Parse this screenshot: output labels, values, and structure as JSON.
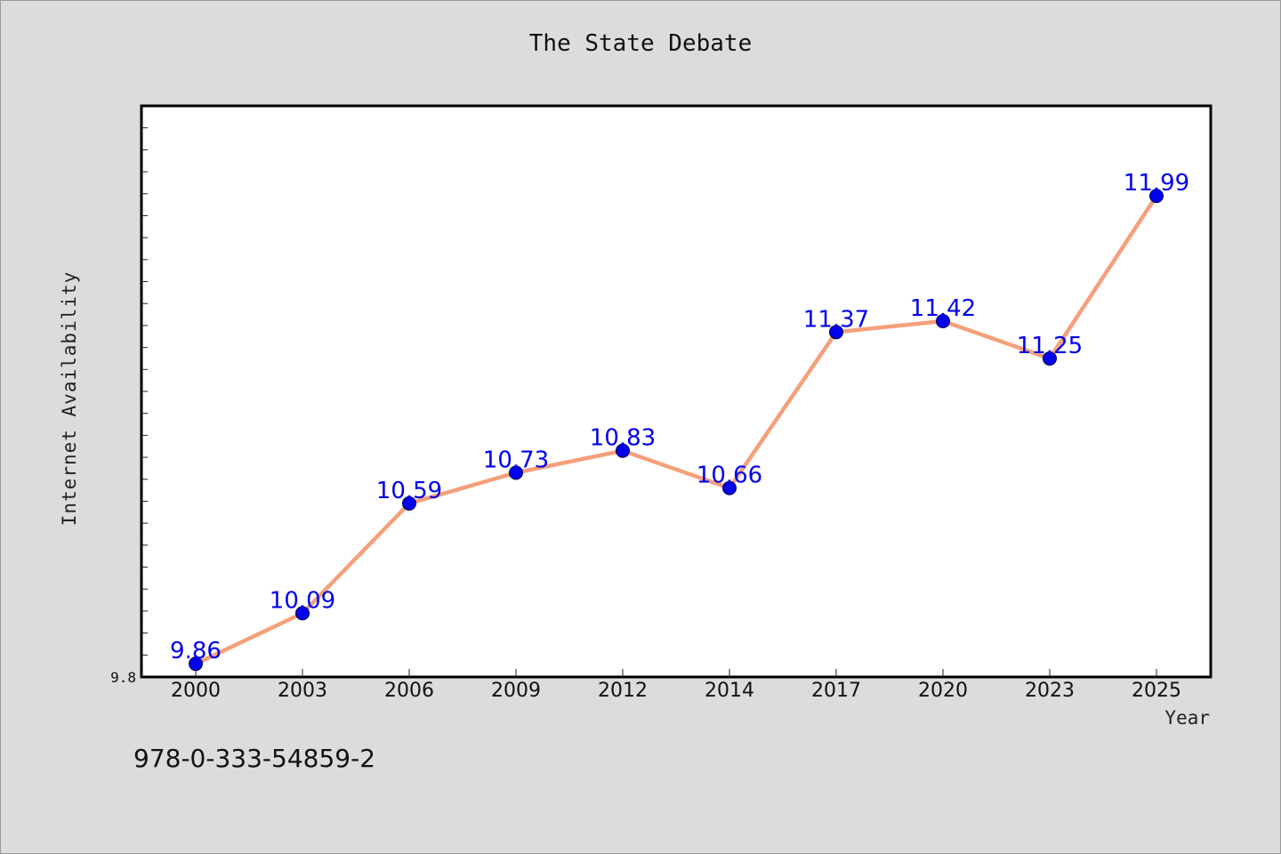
{
  "page": {
    "identifier_text": "978-0-333-54859-2"
  },
  "chart_data": {
    "type": "line",
    "title": "The State Debate",
    "xlabel": "Year",
    "ylabel": "Internet Availability",
    "categories": [
      "2000",
      "2003",
      "2006",
      "2009",
      "2012",
      "2014",
      "2017",
      "2020",
      "2023",
      "2025"
    ],
    "series": [
      {
        "values": [
          9.86,
          10.09,
          10.59,
          10.73,
          10.83,
          10.66,
          11.37,
          11.42,
          11.25,
          11.99
        ],
        "labels": [
          "9.86",
          "10.09",
          "10.59",
          "10.73",
          "10.83",
          "10.66",
          "11.37",
          "11.42",
          "11.25",
          "11.99"
        ],
        "line_color": "#f4a07a",
        "marker_color": "#0000ee"
      }
    ],
    "ylim": [
      9.8,
      12.4
    ],
    "y_min_label": "9.8",
    "grid": false,
    "legend": "none",
    "colors": {
      "background": "#dcdcdc",
      "plot_background": "#ffffff",
      "line": "#f4a07a",
      "marker": "#0000ee",
      "data_label": "#0000ee"
    }
  }
}
